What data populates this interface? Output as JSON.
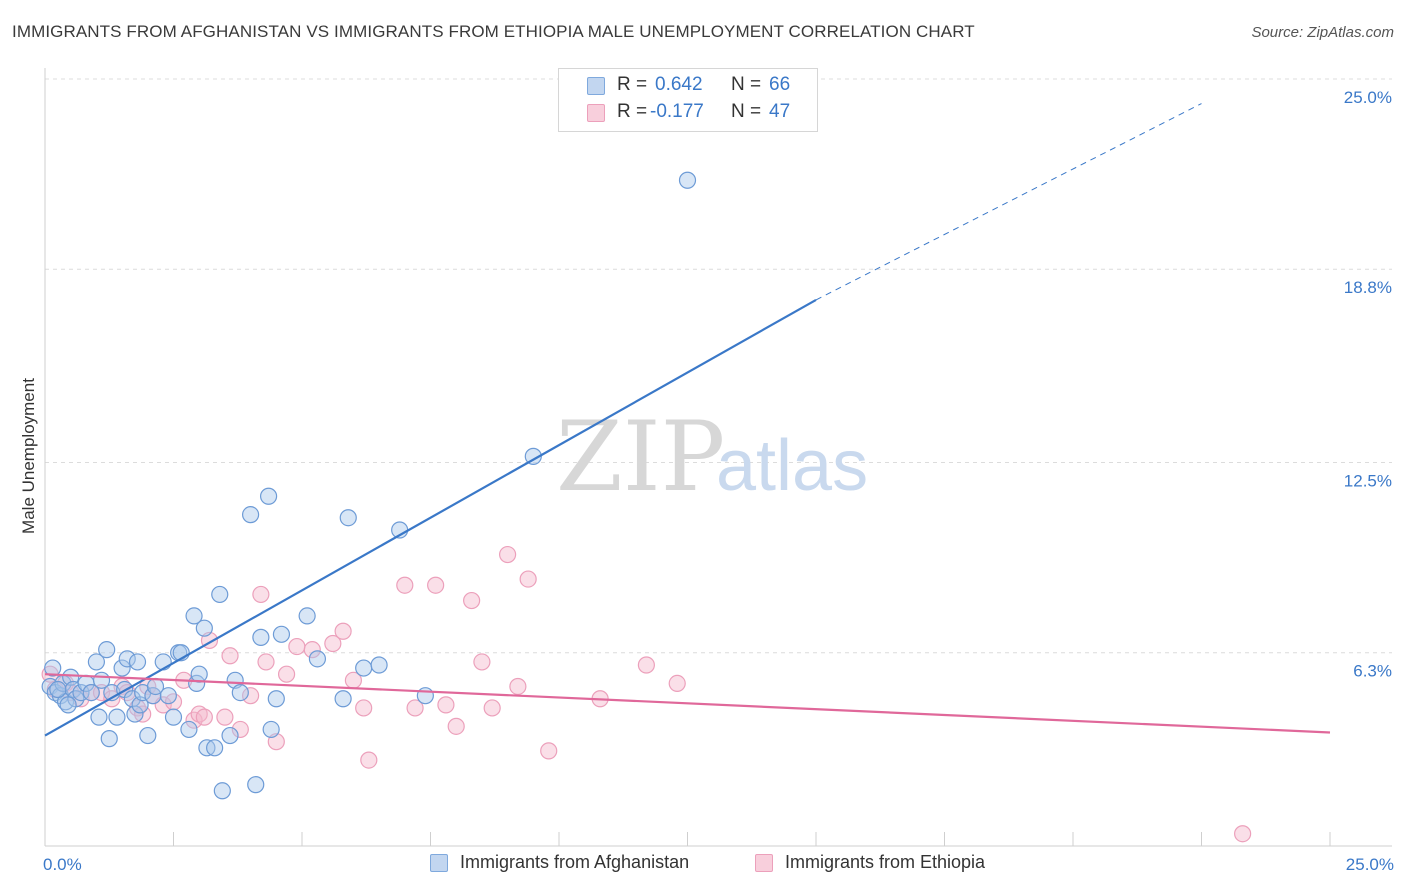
{
  "title": "IMMIGRANTS FROM AFGHANISTAN VS IMMIGRANTS FROM ETHIOPIA MALE UNEMPLOYMENT CORRELATION CHART",
  "source": "Source: ZipAtlas.com",
  "watermark": {
    "zip": "ZIP",
    "atlas": "atlas"
  },
  "colors": {
    "blue": "#3a78c8",
    "blue_fill": "#a9c7ec",
    "pink": "#e0689a",
    "pink_fill": "#f4b8cc"
  },
  "legend": {
    "rows": [
      {
        "r_label": "R =",
        "r_value": "0.642",
        "n_label": "N =",
        "n_value": "66"
      },
      {
        "r_label": "R =",
        "r_value": "-0.177",
        "n_label": "N =",
        "n_value": "47"
      }
    ]
  },
  "bottom_legend": {
    "series1": "Immigrants from Afghanistan",
    "series2": "Immigrants from Ethiopia"
  },
  "chart_data": {
    "type": "scatter",
    "title": "IMMIGRANTS FROM AFGHANISTAN VS IMMIGRANTS FROM ETHIOPIA MALE UNEMPLOYMENT CORRELATION CHART",
    "xlabel": "",
    "ylabel": "Male Unemployment",
    "xlim": [
      0,
      25
    ],
    "ylim": [
      0,
      25
    ],
    "x_tick_labels": [
      "0.0%",
      "25.0%"
    ],
    "y_ticks": [
      6.3,
      12.5,
      18.8,
      25.0
    ],
    "y_tick_labels": [
      "6.3%",
      "12.5%",
      "18.8%",
      "25.0%"
    ],
    "grid": true,
    "series": [
      {
        "name": "Immigrants from Afghanistan",
        "R": 0.642,
        "N": 66,
        "trend": {
          "x0": 0,
          "y0": 3.6,
          "x1": 15,
          "y1": 17.8,
          "dashed_to_x": 22.5,
          "dashed_to_y": 24.2
        },
        "points": [
          [
            0.1,
            5.2
          ],
          [
            0.2,
            5.0
          ],
          [
            0.3,
            4.9
          ],
          [
            0.35,
            5.3
          ],
          [
            0.4,
            4.7
          ],
          [
            0.5,
            5.5
          ],
          [
            0.55,
            5.1
          ],
          [
            0.6,
            4.8
          ],
          [
            0.7,
            5.0
          ],
          [
            0.8,
            5.3
          ],
          [
            0.9,
            5.0
          ],
          [
            1.0,
            6.0
          ],
          [
            1.05,
            4.2
          ],
          [
            1.1,
            5.4
          ],
          [
            1.2,
            6.4
          ],
          [
            1.25,
            3.5
          ],
          [
            1.3,
            5.0
          ],
          [
            1.4,
            4.2
          ],
          [
            1.5,
            5.8
          ],
          [
            1.55,
            5.1
          ],
          [
            1.6,
            6.1
          ],
          [
            1.7,
            4.8
          ],
          [
            1.75,
            4.3
          ],
          [
            1.8,
            6.0
          ],
          [
            1.85,
            4.6
          ],
          [
            1.9,
            5.0
          ],
          [
            2.0,
            3.6
          ],
          [
            2.1,
            4.9
          ],
          [
            2.15,
            5.2
          ],
          [
            2.3,
            6.0
          ],
          [
            2.4,
            4.9
          ],
          [
            2.5,
            4.2
          ],
          [
            2.6,
            6.3
          ],
          [
            2.65,
            6.3
          ],
          [
            2.8,
            3.8
          ],
          [
            2.9,
            7.5
          ],
          [
            2.95,
            5.3
          ],
          [
            3.0,
            5.6
          ],
          [
            3.1,
            7.1
          ],
          [
            3.15,
            3.2
          ],
          [
            3.3,
            3.2
          ],
          [
            3.4,
            8.2
          ],
          [
            3.45,
            1.8
          ],
          [
            3.6,
            3.6
          ],
          [
            3.7,
            5.4
          ],
          [
            3.8,
            5.0
          ],
          [
            4.0,
            10.8
          ],
          [
            4.1,
            2.0
          ],
          [
            4.2,
            6.8
          ],
          [
            4.35,
            11.4
          ],
          [
            4.4,
            3.8
          ],
          [
            4.5,
            4.8
          ],
          [
            4.6,
            6.9
          ],
          [
            5.1,
            7.5
          ],
          [
            5.3,
            6.1
          ],
          [
            5.8,
            4.8
          ],
          [
            5.9,
            10.7
          ],
          [
            6.2,
            5.8
          ],
          [
            6.5,
            5.9
          ],
          [
            6.9,
            10.3
          ],
          [
            7.4,
            4.9
          ],
          [
            9.5,
            12.7
          ],
          [
            12.5,
            21.7
          ],
          [
            0.15,
            5.8
          ],
          [
            0.25,
            5.1
          ],
          [
            0.45,
            4.6
          ]
        ]
      },
      {
        "name": "Immigrants from Ethiopia",
        "R": -0.177,
        "N": 47,
        "trend": {
          "x0": 0,
          "y0": 5.6,
          "x1": 25,
          "y1": 3.7
        },
        "points": [
          [
            0.1,
            5.6
          ],
          [
            0.2,
            5.1
          ],
          [
            0.4,
            5.3
          ],
          [
            0.5,
            5.0
          ],
          [
            0.7,
            4.8
          ],
          [
            0.9,
            5.0
          ],
          [
            1.1,
            5.0
          ],
          [
            1.3,
            4.8
          ],
          [
            1.5,
            5.2
          ],
          [
            1.6,
            5.0
          ],
          [
            1.8,
            4.5
          ],
          [
            1.9,
            4.3
          ],
          [
            2.0,
            5.2
          ],
          [
            2.1,
            4.9
          ],
          [
            2.3,
            4.6
          ],
          [
            2.5,
            4.7
          ],
          [
            2.7,
            5.4
          ],
          [
            2.9,
            4.1
          ],
          [
            3.0,
            4.3
          ],
          [
            3.1,
            4.2
          ],
          [
            3.2,
            6.7
          ],
          [
            3.5,
            4.2
          ],
          [
            3.6,
            6.2
          ],
          [
            3.8,
            3.8
          ],
          [
            4.0,
            4.9
          ],
          [
            4.2,
            8.2
          ],
          [
            4.3,
            6.0
          ],
          [
            4.5,
            3.4
          ],
          [
            4.7,
            5.6
          ],
          [
            4.9,
            6.5
          ],
          [
            5.2,
            6.4
          ],
          [
            5.6,
            6.6
          ],
          [
            5.8,
            7.0
          ],
          [
            6.0,
            5.4
          ],
          [
            6.2,
            4.5
          ],
          [
            6.3,
            2.8
          ],
          [
            7.0,
            8.5
          ],
          [
            7.2,
            4.5
          ],
          [
            7.6,
            8.5
          ],
          [
            7.8,
            4.6
          ],
          [
            8.0,
            3.9
          ],
          [
            8.3,
            8.0
          ],
          [
            8.5,
            6.0
          ],
          [
            8.7,
            4.5
          ],
          [
            9.0,
            9.5
          ],
          [
            9.2,
            5.2
          ],
          [
            9.4,
            8.7
          ]
        ],
        "extra_points": [
          [
            9.8,
            3.1
          ],
          [
            10.8,
            4.8
          ],
          [
            11.7,
            5.9
          ],
          [
            12.3,
            5.3
          ],
          [
            23.3,
            0.4
          ]
        ]
      }
    ]
  }
}
